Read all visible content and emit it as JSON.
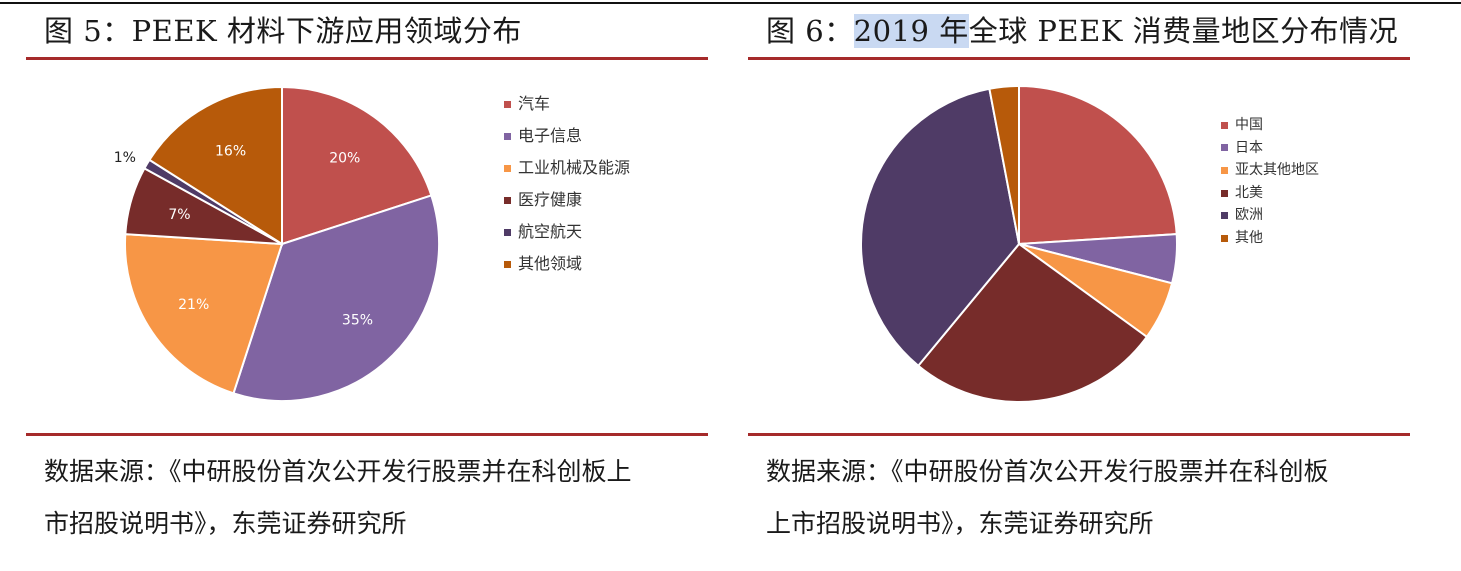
{
  "left_panel": {
    "title": "图 5：PEEK 材料下游应用领域分布",
    "source_line1": "数据来源：《中研股份首次公开发行股票并在科创板上",
    "source_line2": "市招股说明书》，东莞证券研究所"
  },
  "right_panel": {
    "title_prefix": "图 6：",
    "title_highlight": "2019 年",
    "title_rest": "全球 PEEK 消费量地区分布情况",
    "source_line1": "数据来源：《中研股份首次公开发行股票并在科创板",
    "source_line2": "上市招股说明书》，东莞证券研究所"
  },
  "chart_data": [
    {
      "type": "pie",
      "title": "",
      "show_labels": true,
      "legend_position": "right",
      "categories": [
        "汽车",
        "电子信息",
        "工业机械及能源",
        "医疗健康",
        "航空航天",
        "其他领域"
      ],
      "values": [
        20,
        35,
        21,
        7,
        1,
        16
      ],
      "labels": [
        "20%",
        "35%",
        "21%",
        "7%",
        "1%",
        "16%"
      ],
      "colors": [
        "#c0504d",
        "#8064a2",
        "#f79646",
        "#772c2a",
        "#4f3b66",
        "#b75a0a"
      ],
      "label_colors": [
        "#ffffff",
        "#ffffff",
        "#ffffff",
        "#ffffff",
        "#222222",
        "#ffffff"
      ]
    },
    {
      "type": "pie",
      "title": "",
      "show_labels": false,
      "legend_position": "right",
      "categories": [
        "中国",
        "日本",
        "亚太其他地区",
        "北美",
        "欧洲",
        "其他"
      ],
      "values": [
        24,
        5,
        6,
        26,
        36,
        3
      ],
      "colors": [
        "#c0504d",
        "#8064a2",
        "#f79646",
        "#772c2a",
        "#4f3b66",
        "#b75a0a"
      ]
    }
  ]
}
